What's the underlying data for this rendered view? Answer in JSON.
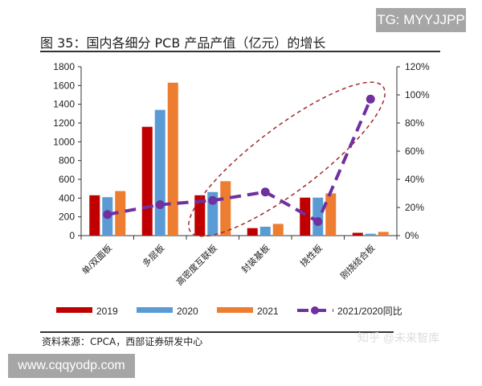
{
  "watermark_top": "TG: MYYJJPP",
  "watermark_bottom": "www.cqqyodp.com",
  "watermark_zhihu": "知乎 @未来智库",
  "source": "资料来源：CPCA，西部证券研发中心",
  "chart_data": {
    "type": "bar",
    "title": "图 35：国内各细分 PCB 产品产值（亿元）的增长",
    "categories": [
      "单/双面板",
      "多层板",
      "高密度互联板",
      "封装基板",
      "挠性板",
      "刚挠结合板"
    ],
    "series": [
      {
        "name": "2019",
        "type": "bar",
        "color": "#c00000",
        "values": [
          430,
          1160,
          430,
          80,
          405,
          30
        ]
      },
      {
        "name": "2020",
        "type": "bar",
        "color": "#5b9bd5",
        "values": [
          410,
          1340,
          465,
          95,
          405,
          20
        ]
      },
      {
        "name": "2021",
        "type": "bar",
        "color": "#ed7d31",
        "values": [
          475,
          1630,
          580,
          125,
          450,
          40
        ]
      },
      {
        "name": "2021/2020同比",
        "type": "line",
        "axis": "right",
        "color": "#7030a0",
        "values": [
          15,
          22,
          25,
          31,
          10,
          97
        ]
      }
    ],
    "ylim": [
      0,
      1800
    ],
    "yticks": [
      "0",
      "200",
      "400",
      "600",
      "800",
      "1000",
      "1200",
      "1400",
      "1600",
      "1800"
    ],
    "y2lim": [
      0,
      120
    ],
    "y2ticks": [
      "0%",
      "20%",
      "40%",
      "60%",
      "80%",
      "100%",
      "120%"
    ],
    "legend": "bottom",
    "annotation": "red dashed ellipse around 高密度互联板 to 刚挠结合板 growth"
  }
}
